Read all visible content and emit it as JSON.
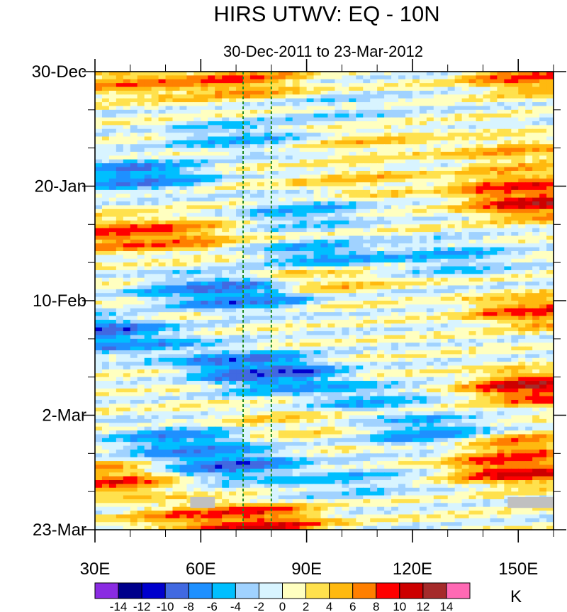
{
  "chart_data": {
    "type": "heatmap",
    "title": "HIRS UTWV: EQ - 10N",
    "subtitle": "30-Dec-2011 to 23-Mar-2012",
    "x_axis": {
      "range": [
        30,
        160
      ],
      "ticks": [
        30,
        60,
        90,
        120,
        150
      ],
      "tick_labels": [
        "30E",
        "60E",
        "90E",
        "120E",
        "150E"
      ],
      "minor_step": 10
    },
    "y_axis": {
      "range_days": [
        0,
        84
      ],
      "direction": "top-to-bottom",
      "ticks": [
        0,
        21,
        42,
        63,
        84
      ],
      "tick_labels": [
        "30-Dec",
        "20-Jan",
        "10-Feb",
        "2-Mar",
        "23-Mar"
      ],
      "minor_step_days": 7
    },
    "reference_lines": {
      "longitudes": [
        72,
        80
      ],
      "style": "dashed",
      "color": "#228b22"
    },
    "missing_data": [
      {
        "lon": [
          57,
          64
        ],
        "days": [
          78,
          80
        ]
      },
      {
        "lon": [
          147,
          160
        ],
        "days": [
          78,
          80
        ]
      }
    ],
    "colorbar": {
      "unit_label": "K",
      "tick_labels": [
        "-14",
        "-12",
        "-10",
        "-8",
        "-6",
        "-4",
        "-2",
        "0",
        "2",
        "4",
        "6",
        "8",
        "10",
        "12",
        "14"
      ],
      "colors": [
        "#8a2be2",
        "#00008b",
        "#0000cd",
        "#4169e1",
        "#1e90ff",
        "#00bfff",
        "#a0d2ff",
        "#d8f4ff",
        "#ffffc0",
        "#ffe14d",
        "#ffb90f",
        "#ff7f00",
        "#ff0000",
        "#cd0000",
        "#a52a2a",
        "#ff69b4"
      ],
      "levels": [
        -16,
        -14,
        -12,
        -10,
        -8,
        -6,
        -4,
        -2,
        0,
        2,
        4,
        6,
        8,
        10,
        12,
        14,
        16
      ]
    },
    "features": [
      {
        "day": 2,
        "lon": 70,
        "value": 9
      },
      {
        "day": 2,
        "lon": 42,
        "value": 8
      },
      {
        "day": 1,
        "lon": 155,
        "value": 10
      },
      {
        "day": 7,
        "lon": 100,
        "value": -3
      },
      {
        "day": 12,
        "lon": 70,
        "value": -6
      },
      {
        "day": 13,
        "lon": 110,
        "value": 4
      },
      {
        "day": 15,
        "lon": 150,
        "value": 6
      },
      {
        "day": 19,
        "lon": 42,
        "value": -10
      },
      {
        "day": 20,
        "lon": 105,
        "value": 4
      },
      {
        "day": 21,
        "lon": 150,
        "value": 10
      },
      {
        "day": 24,
        "lon": 155,
        "value": 13
      },
      {
        "day": 26,
        "lon": 90,
        "value": -6
      },
      {
        "day": 30,
        "lon": 35,
        "value": 10
      },
      {
        "day": 30,
        "lon": 50,
        "value": 9
      },
      {
        "day": 34,
        "lon": 95,
        "value": -8
      },
      {
        "day": 34,
        "lon": 130,
        "value": -6
      },
      {
        "day": 38,
        "lon": 95,
        "value": 5
      },
      {
        "day": 40,
        "lon": 62,
        "value": -8
      },
      {
        "day": 41,
        "lon": 72,
        "value": -10
      },
      {
        "day": 44,
        "lon": 155,
        "value": 10
      },
      {
        "day": 48,
        "lon": 30,
        "value": -12
      },
      {
        "day": 50,
        "lon": 45,
        "value": -6
      },
      {
        "day": 54,
        "lon": 74,
        "value": -11
      },
      {
        "day": 56,
        "lon": 82,
        "value": -10
      },
      {
        "day": 58,
        "lon": 155,
        "value": 14
      },
      {
        "day": 60,
        "lon": 105,
        "value": -6
      },
      {
        "day": 64,
        "lon": 85,
        "value": 3
      },
      {
        "day": 66,
        "lon": 125,
        "value": -8
      },
      {
        "day": 68,
        "lon": 55,
        "value": -9
      },
      {
        "day": 69,
        "lon": 150,
        "value": 9
      },
      {
        "day": 72,
        "lon": 68,
        "value": -11
      },
      {
        "day": 73,
        "lon": 150,
        "value": 13
      },
      {
        "day": 75,
        "lon": 34,
        "value": 10
      },
      {
        "day": 75,
        "lon": 100,
        "value": -5
      },
      {
        "day": 82,
        "lon": 72,
        "value": 10
      },
      {
        "day": 83,
        "lon": 75,
        "value": 12
      },
      {
        "day": 82,
        "lon": 57,
        "value": 7
      }
    ]
  }
}
